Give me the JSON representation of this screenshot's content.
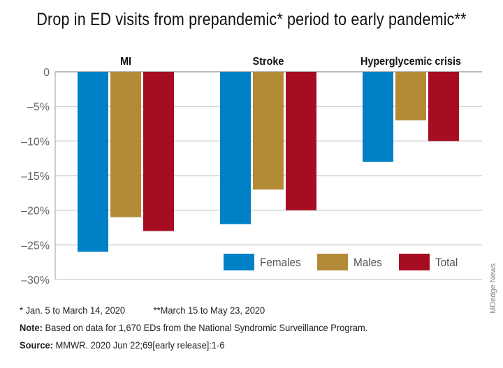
{
  "chart_data": {
    "type": "bar",
    "title": "Drop in ED visits from prepandemic* period to early pandemic**",
    "categories": [
      "MI",
      "Stroke",
      "Hyperglycemic crisis"
    ],
    "series": [
      {
        "name": "Females",
        "color": "#0080c6",
        "values": [
          -26,
          -22,
          -13
        ]
      },
      {
        "name": "Males",
        "color": "#b38b36",
        "values": [
          -21,
          -17,
          -7
        ]
      },
      {
        "name": "Total",
        "color": "#a60d22",
        "values": [
          -23,
          -20,
          -10
        ]
      }
    ],
    "yticks": [
      0,
      -5,
      -10,
      -15,
      -20,
      -25,
      -30
    ],
    "ytick_labels": [
      "0",
      "–5%",
      "–10%",
      "–15%",
      "–20%",
      "–25%",
      "–30%"
    ],
    "ylim": [
      -30,
      0
    ],
    "grid": true,
    "legend": "bottom-right",
    "xlabel": "",
    "ylabel": ""
  },
  "footnotes": {
    "dates": "* Jan. 5 to March 14, 2020",
    "dates2": "**March 15 to May 23, 2020",
    "note_label": "Note:",
    "note": " Based on data for 1,670 EDs from the National Syndromic Surveillance Program.",
    "source_label": "Source:",
    "source": " MMWR. 2020 Jun 22;69[early release]:1-6"
  },
  "credit": "MDedge News"
}
